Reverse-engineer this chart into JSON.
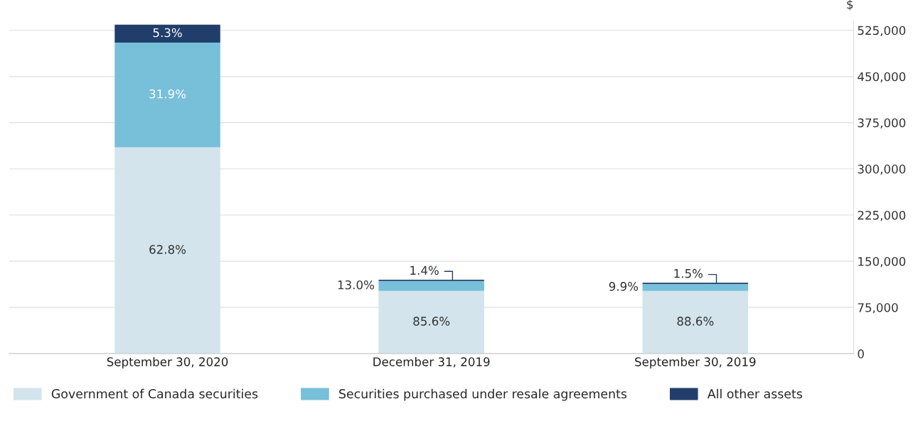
{
  "chart_data": {
    "type": "bar",
    "stacked": true,
    "ylabel": "$",
    "categories": [
      "September 30, 2020",
      "December 31, 2019",
      "September 30, 2019"
    ],
    "series": [
      {
        "name": "Government of Canada securities",
        "color": "#d3e4ec",
        "values": [
          335000,
          102000,
          102000
        ]
      },
      {
        "name": "Securities purchased under resale agreements",
        "color": "#78bfd9",
        "values": [
          170000,
          16000,
          11000
        ]
      },
      {
        "name": "All other assets",
        "color": "#213e6b",
        "values": [
          29000,
          2000,
          2000
        ]
      }
    ],
    "annotations": [
      "62.8%",
      "31.9%",
      "5.3%",
      "85.6%",
      "13.0%",
      "1.4%",
      "88.6%",
      "9.9%",
      "1.5%"
    ],
    "ylim": [
      0,
      540000
    ],
    "yticks": [
      {
        "value": 0,
        "label": "0"
      },
      {
        "value": 75000,
        "label": "75,000"
      },
      {
        "value": 150000,
        "label": "150,000"
      },
      {
        "value": 225000,
        "label": "225,000"
      },
      {
        "value": 300000,
        "label": "300,000"
      },
      {
        "value": 375000,
        "label": "375,000"
      },
      {
        "value": 450000,
        "label": "450,000"
      },
      {
        "value": 525000,
        "label": "525,000"
      }
    ],
    "grid": "y",
    "legend": "bottom"
  }
}
